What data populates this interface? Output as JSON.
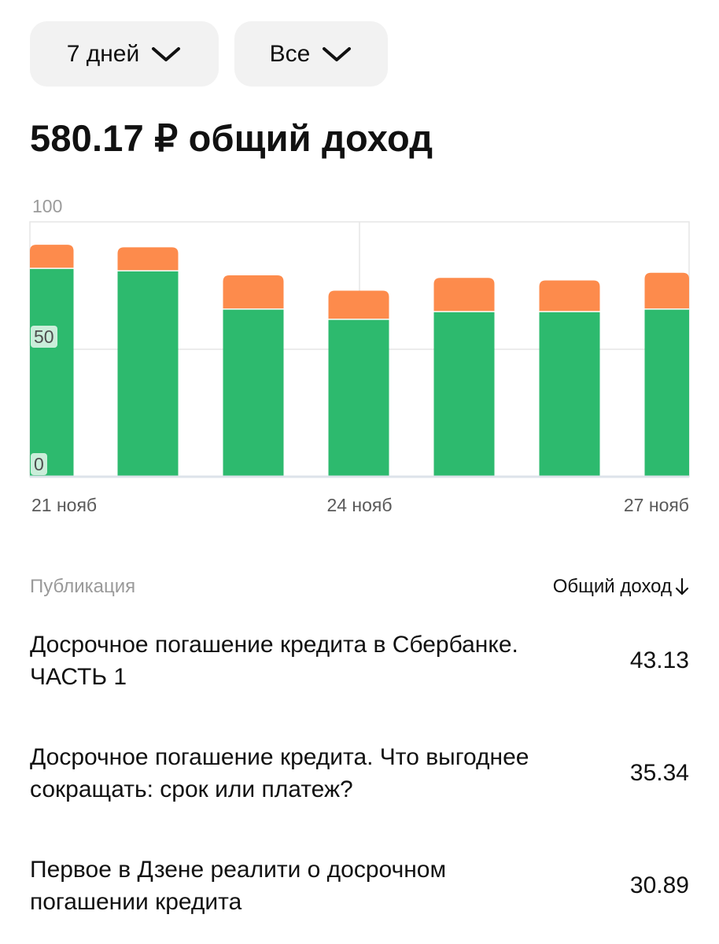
{
  "filters": {
    "period": "7 дней",
    "type": "Все",
    "chevron_icon": "chevron-down-icon"
  },
  "summary": {
    "total": "580.17 ₽ общий доход"
  },
  "chart_data": {
    "type": "bar",
    "stacked": true,
    "categories": [
      "21 нояб",
      "22 нояб",
      "23 нояб",
      "24 нояб",
      "25 нояб",
      "26 нояб",
      "27 нояб"
    ],
    "x_tick_labels": [
      "21 нояб",
      "24 нояб",
      "27 нояб"
    ],
    "y_tick_labels": [
      "0",
      "50",
      "100"
    ],
    "ylim": [
      0,
      100
    ],
    "series": [
      {
        "color": "#2dba6e",
        "values": [
          82,
          81,
          66,
          62,
          65,
          65,
          66
        ]
      },
      {
        "color": "#fd8b4c",
        "values": [
          9,
          9,
          13,
          11,
          13,
          12,
          14
        ]
      }
    ],
    "grid": true
  },
  "table": {
    "col_publication": "Публикация",
    "col_income": "Общий доход",
    "sort_icon": "arrow-down-icon",
    "rows": [
      {
        "title": "Досрочное погашение кредита в Сбербанке. ЧАСТЬ 1",
        "value": "43.13"
      },
      {
        "title": "Досрочное погашение кредита. Что выгоднее сокращать: срок или платеж?",
        "value": "35.34"
      },
      {
        "title": "Первое в Дзене реалити о досрочном погашении кредита",
        "value": "30.89"
      }
    ]
  }
}
